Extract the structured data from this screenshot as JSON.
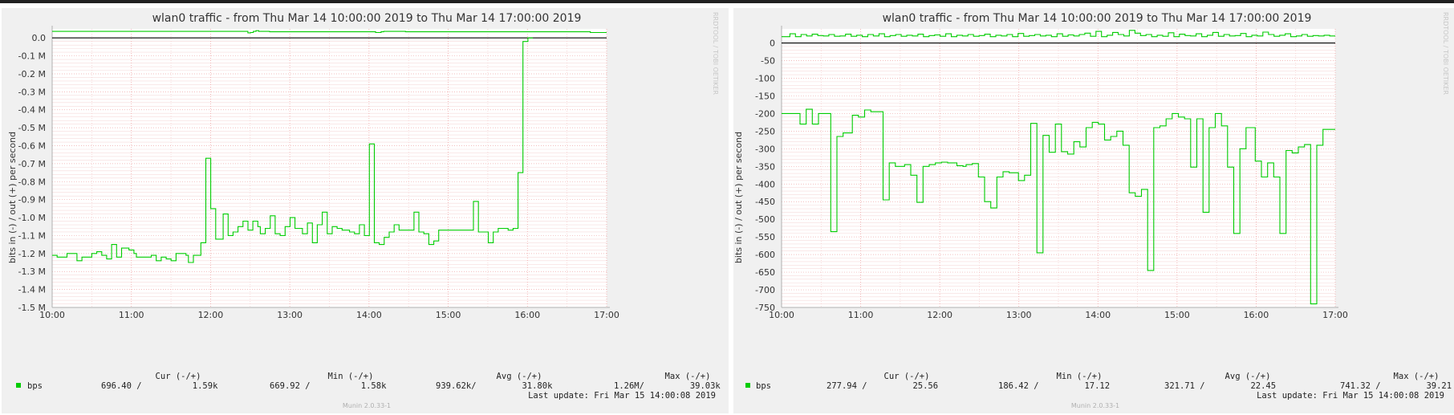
{
  "chart_data": [
    {
      "type": "line",
      "title": "wlan0 traffic - from Thu Mar 14 10:00:00 2019 to Thu Mar 14 17:00:00 2019",
      "ylabel": "bits in (-) / out (+) per second",
      "side_label": "RRDTOOL / TOBI OETIKER",
      "version": "Munin 2.0.33-1",
      "ylim": [
        -1.5,
        0.05
      ],
      "y_unit": "M",
      "y_ticks": [
        {
          "v": 0.0,
          "label": "0.0"
        },
        {
          "v": -0.1,
          "label": "-0.1 M"
        },
        {
          "v": -0.2,
          "label": "-0.2 M"
        },
        {
          "v": -0.3,
          "label": "-0.3 M"
        },
        {
          "v": -0.4,
          "label": "-0.4 M"
        },
        {
          "v": -0.5,
          "label": "-0.5 M"
        },
        {
          "v": -0.6,
          "label": "-0.6 M"
        },
        {
          "v": -0.7,
          "label": "-0.7 M"
        },
        {
          "v": -0.8,
          "label": "-0.8 M"
        },
        {
          "v": -0.9,
          "label": "-0.9 M"
        },
        {
          "v": -1.0,
          "label": "-1.0 M"
        },
        {
          "v": -1.1,
          "label": "-1.1 M"
        },
        {
          "v": -1.2,
          "label": "-1.2 M"
        },
        {
          "v": -1.3,
          "label": "-1.3 M"
        },
        {
          "v": -1.4,
          "label": "-1.4 M"
        },
        {
          "v": -1.5,
          "label": "-1.5 M"
        }
      ],
      "x_ticks": [
        "10:00",
        "11:00",
        "12:00",
        "13:00",
        "14:00",
        "15:00",
        "16:00",
        "17:00"
      ],
      "series": [
        {
          "name": "bps",
          "color": "#00cc00",
          "out": [
            0.036,
            0.036,
            0.036,
            0.036,
            0.036,
            0.036,
            0.036,
            0.036,
            0.036,
            0.036,
            0.036,
            0.036,
            0.036,
            0.036,
            0.036,
            0.036,
            0.036,
            0.036,
            0.036,
            0.036,
            0.036,
            0.036,
            0.036,
            0.036,
            0.036,
            0.036,
            0.036,
            0.036,
            0.036,
            0.036,
            0.036,
            0.036,
            0.036,
            0.036,
            0.036,
            0.036,
            0.036,
            0.036,
            0.036,
            0.036,
            0.036,
            0.036,
            0.036,
            0.036,
            0.036,
            0.036,
            0.036,
            0.036,
            0.036,
            0.036,
            0.036,
            0.036,
            0.036,
            0.036,
            0.036,
            0.036,
            0.036,
            0.036,
            0.036,
            0.036,
            0.036,
            0.036,
            0.036,
            0.036,
            0.036,
            0.036,
            0.036,
            0.036,
            0.036,
            0.036,
            0.036,
            0.036,
            0.028,
            0.03,
            0.036,
            0.04,
            0.036,
            0.036,
            0.036,
            0.036,
            0.034,
            0.034,
            0.034,
            0.034,
            0.034,
            0.034,
            0.034,
            0.034,
            0.034,
            0.034,
            0.034,
            0.034,
            0.034,
            0.034,
            0.034,
            0.034,
            0.034,
            0.034,
            0.034,
            0.034,
            0.034,
            0.034,
            0.034,
            0.034,
            0.034,
            0.034,
            0.034,
            0.034,
            0.034,
            0.034,
            0.034,
            0.034,
            0.034,
            0.034,
            0.034,
            0.034,
            0.034,
            0.034,
            0.034,
            0.03,
            0.03,
            0.034,
            0.036,
            0.036,
            0.036,
            0.036,
            0.036,
            0.036,
            0.036,
            0.036,
            0.034,
            0.034,
            0.034,
            0.034,
            0.034,
            0.034,
            0.034,
            0.034,
            0.034,
            0.034,
            0.034,
            0.034,
            0.034,
            0.034,
            0.034,
            0.034,
            0.034,
            0.034,
            0.034,
            0.034,
            0.034,
            0.034,
            0.034,
            0.034,
            0.034,
            0.034,
            0.034,
            0.034,
            0.034,
            0.034,
            0.034,
            0.034,
            0.034,
            0.034,
            0.034,
            0.034,
            0.034,
            0.034,
            0.034,
            0.034,
            0.034,
            0.034,
            0.034,
            0.034,
            0.034,
            0.034,
            0.034,
            0.034,
            0.034,
            0.034,
            0.034,
            0.034,
            0.034,
            0.034,
            0.034,
            0.034,
            0.034,
            0.034,
            0.034,
            0.034,
            0.034,
            0.034,
            0.034,
            0.034,
            0.034,
            0.034,
            0.034,
            0.034,
            0.03,
            0.03,
            0.03,
            0.03,
            0.03,
            0.03
          ],
          "in": [
            -1.21,
            -1.21,
            -1.22,
            -1.22,
            -1.22,
            -1.22,
            -1.2,
            -1.2,
            -1.2,
            -1.2,
            -1.24,
            -1.24,
            -1.22,
            -1.22,
            -1.22,
            -1.22,
            -1.2,
            -1.2,
            -1.19,
            -1.19,
            -1.21,
            -1.21,
            -1.23,
            -1.23,
            -1.15,
            -1.15,
            -1.22,
            -1.22,
            -1.17,
            -1.17,
            -1.17,
            -1.18,
            -1.18,
            -1.2,
            -1.22,
            -1.22,
            -1.22,
            -1.22,
            -1.22,
            -1.22,
            -1.21,
            -1.21,
            -1.24,
            -1.24,
            -1.22,
            -1.22,
            -1.23,
            -1.23,
            -1.24,
            -1.24,
            -1.2,
            -1.2,
            -1.2,
            -1.2,
            -1.21,
            -1.25,
            -1.25,
            -1.21,
            -1.21,
            -1.21,
            -1.14,
            -1.14,
            -0.67,
            -0.67,
            -0.95,
            -0.95,
            -1.12,
            -1.12,
            -1.12,
            -0.98,
            -0.98,
            -1.1,
            -1.1,
            -1.08,
            -1.08,
            -1.05,
            -1.05,
            -1.02,
            -1.02,
            -1.07,
            -1.07,
            -1.02,
            -1.02,
            -1.05,
            -1.09,
            -1.09,
            -1.06,
            -1.06,
            -0.99,
            -0.99,
            -1.09,
            -1.09,
            -1.1,
            -1.1,
            -1.05,
            -1.05,
            -1.0,
            -1.0,
            -1.06,
            -1.06,
            -1.06,
            -1.09,
            -1.09,
            -1.03,
            -1.03,
            -1.14,
            -1.14,
            -1.04,
            -1.04,
            -0.97,
            -0.97,
            -1.09,
            -1.09,
            -1.05,
            -1.05,
            -1.06,
            -1.06,
            -1.07,
            -1.07,
            -1.07,
            -1.08,
            -1.08,
            -1.09,
            -1.09,
            -1.04,
            -1.04,
            -1.1,
            -1.1,
            -0.59,
            -0.59,
            -1.14,
            -1.14,
            -1.15,
            -1.15,
            -1.11,
            -1.11,
            -1.08,
            -1.08,
            -1.04,
            -1.04,
            -1.07,
            -1.07,
            -1.07,
            -1.07,
            -1.07,
            -1.07,
            -0.97,
            -0.97,
            -1.08,
            -1.08,
            -1.09,
            -1.09,
            -1.15,
            -1.15,
            -1.13,
            -1.13,
            -1.07,
            -1.07,
            -1.07,
            -1.07,
            -1.07,
            -1.07,
            -1.07,
            -1.07,
            -1.07,
            -1.07,
            -1.07,
            -1.07,
            -1.07,
            -1.07,
            -0.91,
            -0.91,
            -1.08,
            -1.08,
            -1.08,
            -1.08,
            -1.14,
            -1.14,
            -1.08,
            -1.08,
            -1.06,
            -1.06,
            -1.06,
            -1.06,
            -1.07,
            -1.07,
            -1.06,
            -1.06,
            -0.75,
            -0.75,
            -0.02,
            -0.02,
            0.0,
            0.0
          ]
        }
      ],
      "legend": {
        "headers": [
          "Cur (-/+)",
          "Min (-/+)",
          "Avg (-/+)",
          "Max (-/+)"
        ],
        "row": {
          "name": "bps",
          "cur": "696.40 /          1.59k",
          "min": "669.92 /          1.58k",
          "avg": "939.62k/         31.80k",
          "max": "1.26M/         39.03k"
        },
        "last_update": "Last update: Fri Mar 15 14:00:08 2019"
      }
    },
    {
      "type": "line",
      "title": "wlan0 traffic - from Thu Mar 14 10:00:00 2019 to Thu Mar 14 17:00:00 2019",
      "ylabel": "bits in (-) / out (+) per second",
      "side_label": "RRDTOOL / TOBI OETIKER",
      "version": "Munin 2.0.33-1",
      "ylim": [
        -750,
        40
      ],
      "y_ticks": [
        {
          "v": 0,
          "label": "0"
        },
        {
          "v": -50,
          "label": "-50"
        },
        {
          "v": -100,
          "label": "-100"
        },
        {
          "v": -150,
          "label": "-150"
        },
        {
          "v": -200,
          "label": "-200"
        },
        {
          "v": -250,
          "label": "-250"
        },
        {
          "v": -300,
          "label": "-300"
        },
        {
          "v": -350,
          "label": "-350"
        },
        {
          "v": -400,
          "label": "-400"
        },
        {
          "v": -450,
          "label": "-450"
        },
        {
          "v": -500,
          "label": "-500"
        },
        {
          "v": -550,
          "label": "-550"
        },
        {
          "v": -600,
          "label": "-600"
        },
        {
          "v": -650,
          "label": "-650"
        },
        {
          "v": -700,
          "label": "-700"
        },
        {
          "v": -750,
          "label": "-750"
        }
      ],
      "x_ticks": [
        "10:00",
        "11:00",
        "12:00",
        "13:00",
        "14:00",
        "15:00",
        "16:00",
        "17:00"
      ],
      "series": [
        {
          "name": "bps",
          "color": "#00cc00",
          "out": [
            18,
            18,
            18,
            26,
            26,
            18,
            18,
            24,
            24,
            20,
            20,
            25,
            25,
            21,
            21,
            20,
            20,
            24,
            24,
            19,
            19,
            20,
            20,
            25,
            25,
            19,
            19,
            22,
            22,
            18,
            18,
            24,
            24,
            20,
            20,
            26,
            26,
            18,
            18,
            21,
            21,
            24,
            24,
            19,
            19,
            22,
            22,
            20,
            20,
            25,
            25,
            18,
            18,
            21,
            21,
            23,
            23,
            19,
            19,
            26,
            26,
            18,
            18,
            22,
            22,
            20,
            20,
            24,
            24,
            19,
            19,
            21,
            21,
            25,
            25,
            18,
            18,
            22,
            22,
            20,
            20,
            24,
            24,
            18,
            18,
            27,
            27,
            19,
            19,
            21,
            21,
            24,
            24,
            20,
            20,
            22,
            22,
            18,
            18,
            26,
            26,
            19,
            19,
            23,
            23,
            20,
            20,
            24,
            24,
            28,
            28,
            19,
            19,
            33,
            33,
            18,
            18,
            22,
            22,
            30,
            30,
            24,
            24,
            20,
            20,
            36,
            36,
            28,
            28,
            21,
            21,
            24,
            24,
            18,
            18,
            22,
            22,
            19,
            19,
            29,
            29,
            18,
            18,
            25,
            25,
            21,
            21,
            20,
            20,
            26,
            26,
            18,
            18,
            22,
            22,
            30,
            30,
            19,
            19,
            24,
            24,
            20,
            20,
            21,
            21,
            27,
            27,
            18,
            18,
            22,
            22,
            20,
            20,
            31,
            31,
            24,
            24,
            19,
            19,
            22,
            22,
            26,
            26,
            18,
            18,
            20,
            20,
            24,
            24,
            19,
            19,
            21,
            21,
            20,
            20,
            22,
            22,
            20,
            20
          ],
          "in": [
            -200,
            -200,
            -200,
            -200,
            -200,
            -200,
            -230,
            -230,
            -188,
            -188,
            -230,
            -230,
            -200,
            -200,
            -200,
            -200,
            -535,
            -535,
            -265,
            -265,
            -255,
            -255,
            -255,
            -205,
            -205,
            -210,
            -210,
            -190,
            -190,
            -195,
            -195,
            -195,
            -195,
            -445,
            -445,
            -340,
            -340,
            -350,
            -350,
            -350,
            -345,
            -345,
            -375,
            -375,
            -452,
            -452,
            -350,
            -350,
            -345,
            -345,
            -340,
            -340,
            -338,
            -338,
            -340,
            -340,
            -340,
            -348,
            -348,
            -350,
            -345,
            -345,
            -342,
            -342,
            -380,
            -380,
            -450,
            -450,
            -468,
            -468,
            -380,
            -380,
            -365,
            -365,
            -368,
            -368,
            -368,
            -390,
            -390,
            -375,
            -375,
            -228,
            -228,
            -595,
            -595,
            -262,
            -262,
            -310,
            -310,
            -230,
            -230,
            -308,
            -308,
            -315,
            -315,
            -280,
            -280,
            -295,
            -295,
            -240,
            -240,
            -225,
            -225,
            -230,
            -230,
            -275,
            -275,
            -265,
            -265,
            -250,
            -250,
            -290,
            -290,
            -425,
            -425,
            -435,
            -435,
            -415,
            -415,
            -645,
            -645,
            -240,
            -240,
            -235,
            -235,
            -215,
            -215,
            -200,
            -200,
            -210,
            -210,
            -215,
            -215,
            -352,
            -352,
            -215,
            -215,
            -480,
            -480,
            -240,
            -240,
            -200,
            -200,
            -235,
            -235,
            -352,
            -352,
            -540,
            -540,
            -300,
            -300,
            -240,
            -240,
            -240,
            -335,
            -335,
            -380,
            -380,
            -340,
            -340,
            -380,
            -380,
            -540,
            -540,
            -305,
            -305,
            -312,
            -312,
            -295,
            -295,
            -288,
            -288,
            -740,
            -740,
            -290,
            -290,
            -245,
            -245,
            -245,
            -245
          ]
        }
      ],
      "legend": {
        "headers": [
          "Cur (-/+)",
          "Min (-/+)",
          "Avg (-/+)",
          "Max (-/+)"
        ],
        "row": {
          "name": "bps",
          "cur": "277.94 /         25.56",
          "min": "186.42 /         17.12",
          "avg": "321.71 /         22.45",
          "max": "741.32 /         39.21"
        },
        "last_update": "Last update: Fri Mar 15 14:00:08 2019"
      }
    }
  ]
}
